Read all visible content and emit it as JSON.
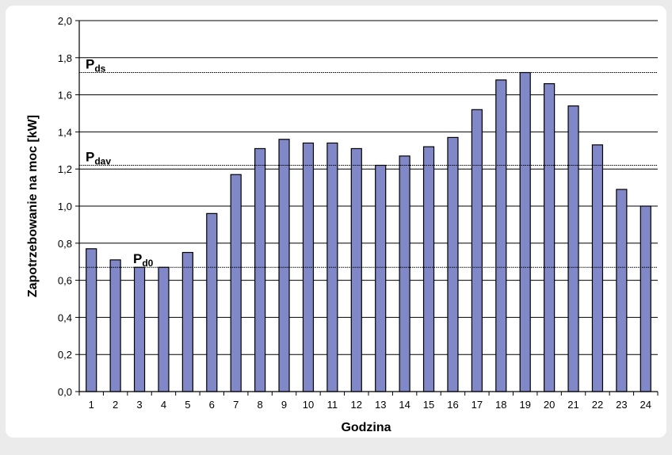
{
  "chart_data": {
    "type": "bar",
    "xlabel": "Godzina",
    "ylabel": "Zapotrzebowanie na moc [kW]",
    "ylim": [
      0,
      2.0
    ],
    "yticks": [
      "0,0",
      "0,2",
      "0,4",
      "0,6",
      "0,8",
      "1,0",
      "1,2",
      "1,4",
      "1,6",
      "1,8",
      "2,0"
    ],
    "grid": true,
    "categories": [
      "1",
      "2",
      "3",
      "4",
      "5",
      "6",
      "7",
      "8",
      "9",
      "10",
      "11",
      "12",
      "13",
      "14",
      "15",
      "16",
      "17",
      "18",
      "19",
      "20",
      "21",
      "22",
      "23",
      "24"
    ],
    "values": [
      0.77,
      0.71,
      0.67,
      0.67,
      0.75,
      0.96,
      1.17,
      1.31,
      1.36,
      1.34,
      1.34,
      1.31,
      1.22,
      1.27,
      1.32,
      1.37,
      1.52,
      1.68,
      1.72,
      1.66,
      1.54,
      1.33,
      1.09,
      1.0
    ],
    "bar_color": "#8088c8",
    "reference_lines": [
      {
        "main": "P",
        "sub": "ds",
        "value": 1.72
      },
      {
        "main": "P",
        "sub": "dav",
        "value": 1.22
      },
      {
        "main": "P",
        "sub": "d0",
        "value": 0.67
      }
    ]
  }
}
